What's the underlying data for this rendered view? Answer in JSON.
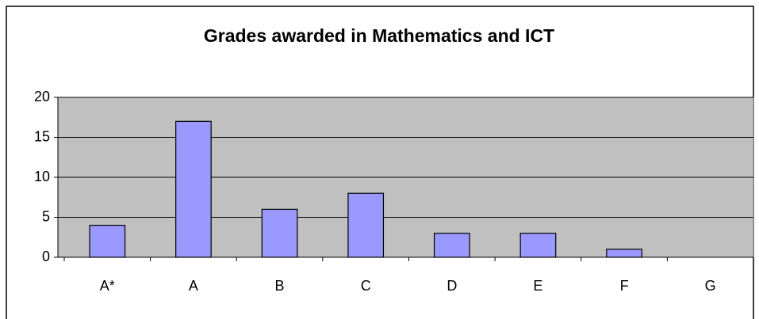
{
  "chart_data": {
    "type": "bar",
    "title": "Grades awarded in Mathematics and ICT",
    "categories": [
      "A*",
      "A",
      "B",
      "C",
      "D",
      "E",
      "F",
      "G"
    ],
    "values": [
      4,
      17,
      6,
      8,
      3,
      3,
      1,
      0
    ],
    "color": "#9999ff",
    "ylim": [
      0,
      20
    ],
    "yticks": [
      0,
      5,
      10,
      15,
      20
    ],
    "grid": true
  }
}
